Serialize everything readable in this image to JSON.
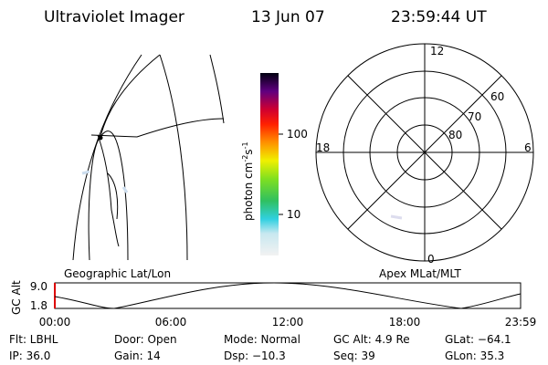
{
  "header": {
    "instrument": "Ultraviolet Imager",
    "date": "13 Jun 07",
    "time": "23:59:44 UT"
  },
  "colorbar": {
    "unit": "photon cm",
    "unit_exp1": "-2",
    "unit_s": "s",
    "unit_exp2": "-1",
    "ticks": [
      "100",
      "10"
    ]
  },
  "polar": {
    "mlt_labels": [
      "12",
      "6",
      "18",
      "0"
    ],
    "lat_labels": [
      "60",
      "70",
      "80"
    ]
  },
  "strip": {
    "left_label": "Geographic Lat/Lon",
    "right_label": "Apex MLat/MLT",
    "axis_label": "GC Alt",
    "yticks": [
      "9.0",
      "1.8"
    ],
    "xticks": [
      "00:00",
      "06:00",
      "12:00",
      "18:00",
      "23:59"
    ]
  },
  "info": {
    "rows": [
      [
        "Flt: LBHL",
        "Door: Open",
        "Mode: Normal",
        "GC Alt: 4.9 Re",
        "GLat: −64.1"
      ],
      [
        "IP: 36.0",
        "Gain: 14",
        "Dsp: −10.3",
        "Seq: 39",
        "GLon: 35.3"
      ]
    ]
  }
}
